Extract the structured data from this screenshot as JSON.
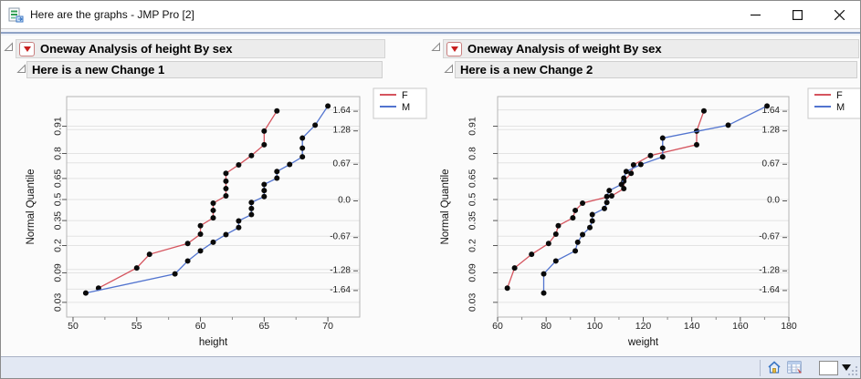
{
  "window": {
    "title": "Here are the graphs - JMP Pro [2]"
  },
  "panels": [
    {
      "header_title": "Oneway Analysis of height By sex",
      "subheader_title": "Here is a new Change 1"
    },
    {
      "header_title": "Oneway Analysis of weight By sex",
      "subheader_title": "Here is a new Change 2"
    }
  ],
  "chart_data": [
    {
      "type": "line",
      "variant": "normal-quantile-plot",
      "title": "",
      "xlabel": "height",
      "ylabel": "Normal Quantile",
      "x_range": [
        49.5,
        72.5
      ],
      "x_major_ticks": [
        50,
        55,
        60,
        65,
        70
      ],
      "x_minor_step": 2.5,
      "grid": "horizontal-only",
      "left_axis_probability_labels": [
        {
          "label": "0.91",
          "z": 1.341
        },
        {
          "label": "0.8",
          "z": 0.842
        },
        {
          "label": "0.65",
          "z": 0.385
        },
        {
          "label": "0.5",
          "z": 0.0
        },
        {
          "label": "0.35",
          "z": -0.385
        },
        {
          "label": "0.2",
          "z": -0.842
        },
        {
          "label": "0.09",
          "z": -1.341
        },
        {
          "label": "0.03",
          "z": -1.881
        }
      ],
      "right_axis_quantile_labels": [
        {
          "label": "1.64",
          "z": 1.64
        },
        {
          "label": "1.28",
          "z": 1.28
        },
        {
          "label": "0.67",
          "z": 0.67
        },
        {
          "label": "0.0",
          "z": 0.0
        },
        {
          "label": "-0.67",
          "z": -0.67
        },
        {
          "label": "-1.28",
          "z": -1.28
        },
        {
          "label": "-1.64",
          "z": -1.64
        }
      ],
      "gridline_z": [
        1.64,
        1.341,
        1.28,
        0.842,
        0.67,
        0.385,
        0,
        -0.385,
        -0.67,
        -0.842,
        -1.28,
        -1.341,
        -1.64,
        -1.881
      ],
      "legend": {
        "position": "top-right"
      },
      "series": [
        {
          "name": "F",
          "color": "#d5545e",
          "x": [
            52,
            55,
            56,
            59,
            60,
            60,
            61,
            61,
            61,
            62,
            62,
            62,
            62,
            63,
            64,
            65,
            65,
            66
          ],
          "z": [
            -1.62,
            -1.252,
            -1.003,
            -0.805,
            -0.634,
            -0.479,
            -0.336,
            -0.199,
            -0.066,
            0.066,
            0.199,
            0.336,
            0.479,
            0.634,
            0.805,
            1.003,
            1.252,
            1.62
          ]
        },
        {
          "name": "M",
          "color": "#5274cf",
          "x": [
            51,
            58,
            59,
            60,
            61,
            62,
            63,
            63,
            64,
            64,
            64,
            65,
            65,
            65,
            66,
            66,
            67,
            68,
            68,
            68,
            69,
            70
          ],
          "z": [
            -1.711,
            -1.36,
            -1.124,
            -0.939,
            -0.781,
            -0.641,
            -0.512,
            -0.391,
            -0.276,
            -0.164,
            -0.055,
            0.055,
            0.164,
            0.276,
            0.391,
            0.512,
            0.641,
            0.781,
            0.939,
            1.124,
            1.36,
            1.711
          ]
        }
      ]
    },
    {
      "type": "line",
      "variant": "normal-quantile-plot",
      "title": "",
      "xlabel": "weight",
      "ylabel": "Normal Quantile",
      "x_range": [
        60,
        180
      ],
      "x_major_ticks": [
        60,
        80,
        100,
        120,
        140,
        160,
        180
      ],
      "x_minor_step": 10,
      "grid": "horizontal-only",
      "left_axis_probability_labels": [
        {
          "label": "0.91",
          "z": 1.341
        },
        {
          "label": "0.8",
          "z": 0.842
        },
        {
          "label": "0.65",
          "z": 0.385
        },
        {
          "label": "0.5",
          "z": 0.0
        },
        {
          "label": "0.35",
          "z": -0.385
        },
        {
          "label": "0.2",
          "z": -0.842
        },
        {
          "label": "0.09",
          "z": -1.341
        },
        {
          "label": "0.03",
          "z": -1.881
        }
      ],
      "right_axis_quantile_labels": [
        {
          "label": "1.64",
          "z": 1.64
        },
        {
          "label": "1.28",
          "z": 1.28
        },
        {
          "label": "0.67",
          "z": 0.67
        },
        {
          "label": "0.0",
          "z": 0.0
        },
        {
          "label": "-0.67",
          "z": -0.67
        },
        {
          "label": "-1.28",
          "z": -1.28
        },
        {
          "label": "-1.64",
          "z": -1.64
        }
      ],
      "gridline_z": [
        1.64,
        1.341,
        1.28,
        0.842,
        0.67,
        0.385,
        0,
        -0.385,
        -0.67,
        -0.842,
        -1.28,
        -1.341,
        -1.64,
        -1.881
      ],
      "legend": {
        "position": "top-right"
      },
      "series": [
        {
          "name": "F",
          "color": "#d5545e",
          "x": [
            64,
            67,
            74,
            81,
            84,
            85,
            91,
            92,
            95,
            107,
            112,
            112,
            115,
            116,
            123,
            142,
            142,
            145
          ],
          "z": [
            -1.62,
            -1.252,
            -1.003,
            -0.805,
            -0.634,
            -0.479,
            -0.336,
            -0.199,
            -0.066,
            0.066,
            0.199,
            0.336,
            0.479,
            0.634,
            0.805,
            1.003,
            1.252,
            1.62
          ]
        },
        {
          "name": "M",
          "color": "#5274cf",
          "x": [
            79,
            79,
            84,
            92,
            93,
            95,
            98,
            99,
            99,
            104,
            105,
            105,
            106,
            111,
            112,
            113,
            119,
            128,
            128,
            128,
            155,
            171
          ],
          "z": [
            -1.711,
            -1.36,
            -1.124,
            -0.939,
            -0.781,
            -0.641,
            -0.512,
            -0.391,
            -0.276,
            -0.164,
            -0.055,
            0.055,
            0.164,
            0.276,
            0.391,
            0.512,
            0.641,
            0.781,
            0.939,
            1.124,
            1.36,
            1.711
          ]
        }
      ]
    }
  ]
}
